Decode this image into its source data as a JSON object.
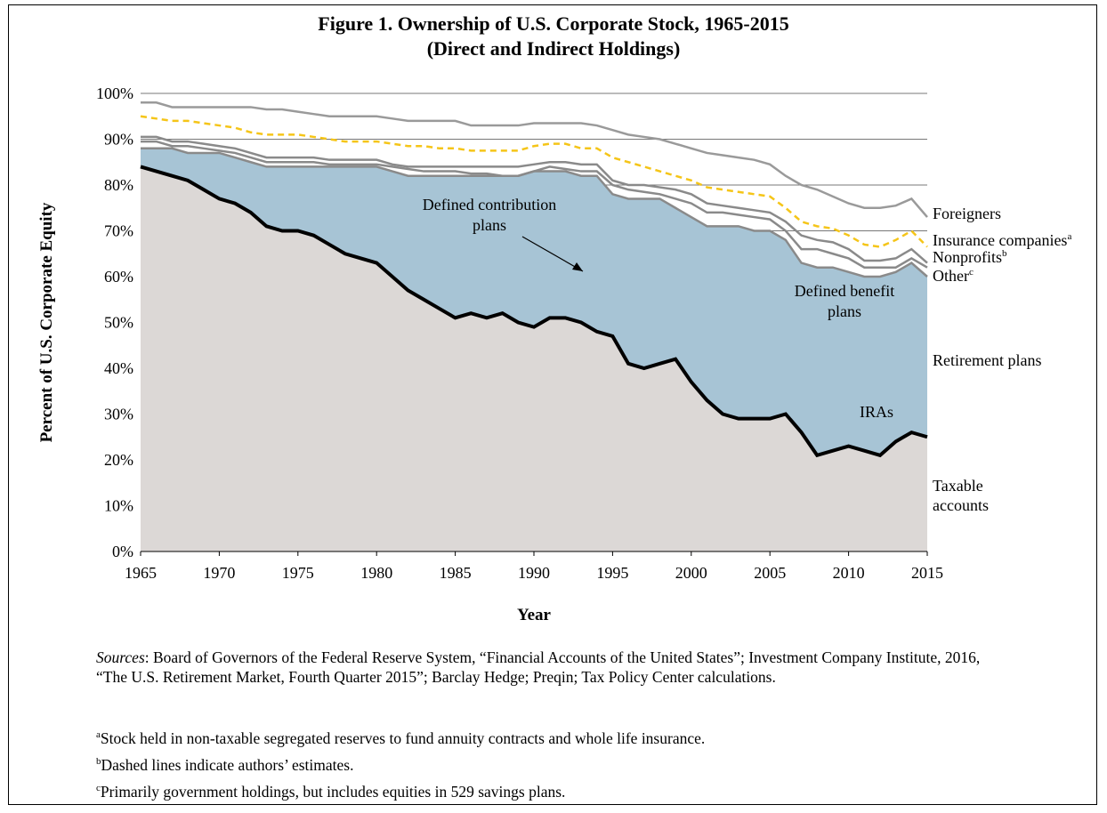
{
  "chart_data": {
    "type": "area",
    "title": "Figure 1. Ownership of U.S. Corporate Stock, 1965-2015",
    "subtitle": "(Direct and Indirect Holdings)",
    "xlabel": "Year",
    "ylabel": "Percent of U.S. Corporate Equity",
    "xlim": [
      1965,
      2015
    ],
    "ylim": [
      0,
      100
    ],
    "x_ticks": [
      "1965",
      "1970",
      "1975",
      "1980",
      "1985",
      "1990",
      "1995",
      "2000",
      "2005",
      "2010",
      "2015"
    ],
    "y_ticks": [
      "0%",
      "10%",
      "20%",
      "30%",
      "40%",
      "50%",
      "60%",
      "70%",
      "80%",
      "90%",
      "100%"
    ],
    "grid": "horizontal",
    "x": [
      1965,
      1966,
      1967,
      1968,
      1969,
      1970,
      1971,
      1972,
      1973,
      1974,
      1975,
      1976,
      1977,
      1978,
      1979,
      1980,
      1981,
      1982,
      1983,
      1984,
      1985,
      1986,
      1987,
      1988,
      1989,
      1990,
      1991,
      1992,
      1993,
      1994,
      1995,
      1996,
      1997,
      1998,
      1999,
      2000,
      2001,
      2002,
      2003,
      2004,
      2005,
      2006,
      2007,
      2008,
      2009,
      2010,
      2011,
      2012,
      2013,
      2014,
      2015
    ],
    "series": [
      {
        "name": "Taxable accounts",
        "values": [
          84,
          83,
          82,
          81,
          79,
          77,
          76,
          74,
          71,
          70,
          70,
          69,
          67,
          65,
          64,
          63,
          60,
          57,
          55,
          53,
          51,
          52,
          51,
          52,
          50,
          49,
          51,
          51,
          50,
          48,
          47,
          41,
          40,
          41,
          42,
          37,
          33,
          30,
          29,
          29,
          29,
          30,
          26,
          21,
          22,
          23,
          22,
          21,
          24,
          26,
          25
        ]
      },
      {
        "name": "IRAs",
        "values": [
          null,
          null,
          null,
          null,
          null,
          null,
          null,
          null,
          null,
          null,
          null,
          null,
          null,
          null,
          null,
          null,
          null,
          null,
          null,
          null,
          null,
          null,
          null,
          null,
          null,
          null,
          null,
          null,
          null,
          null,
          null,
          null,
          null,
          null,
          null,
          null,
          null,
          null,
          null,
          null,
          null,
          null,
          null,
          null,
          null,
          null,
          null,
          null,
          null,
          null,
          null
        ]
      },
      {
        "name": "Retirement plans",
        "values": [
          88,
          88,
          88,
          87,
          87,
          87,
          86,
          85,
          84,
          84,
          84,
          84,
          84,
          84,
          84,
          84,
          83,
          82,
          82,
          82,
          82,
          82,
          82,
          82,
          82,
          83,
          83,
          83,
          82,
          82,
          78,
          77,
          77,
          77,
          75,
          73,
          71,
          71,
          71,
          70,
          70,
          68,
          63,
          62,
          62,
          61,
          60,
          60,
          61,
          63,
          60
        ]
      },
      {
        "name": "Other",
        "values": [
          89.5,
          89.5,
          88.5,
          88.5,
          88,
          87.5,
          87,
          86,
          85,
          85,
          85,
          85,
          84.5,
          84.5,
          84.5,
          84.5,
          84,
          83.5,
          83,
          83,
          83,
          82.5,
          82.5,
          82,
          82,
          83,
          84,
          83.5,
          83,
          83,
          80,
          79,
          78.5,
          78,
          77,
          76,
          74,
          74,
          73.5,
          73,
          72.5,
          70,
          66,
          66,
          65,
          64,
          62,
          62,
          62,
          64,
          62
        ]
      },
      {
        "name": "Nonprofits",
        "values": [
          90.5,
          90.5,
          89.5,
          89.5,
          89,
          88.5,
          88,
          87,
          86,
          86,
          86,
          86,
          85.5,
          85.5,
          85.5,
          85.5,
          84.5,
          84,
          84,
          84,
          84,
          84,
          84,
          84,
          84,
          84.5,
          85,
          85,
          84.5,
          84.5,
          81,
          80,
          80,
          79.5,
          79,
          78,
          76,
          75.5,
          75,
          74.5,
          74,
          72,
          69,
          68,
          67.5,
          66,
          63.5,
          63.5,
          64,
          66,
          63
        ]
      },
      {
        "name": "Insurance companies",
        "values": [
          95,
          94.5,
          94,
          94,
          93.5,
          93,
          92.5,
          91.5,
          91,
          91,
          91,
          90.5,
          90,
          89.5,
          89.5,
          89.5,
          89,
          88.5,
          88.5,
          88,
          88,
          87.5,
          87.5,
          87.5,
          87.5,
          88.5,
          89,
          89,
          88,
          88,
          86,
          85,
          84,
          83,
          82,
          81,
          79.5,
          79,
          78.5,
          78,
          77.5,
          75,
          72,
          71,
          70.5,
          69,
          67,
          66.5,
          68,
          70,
          66.5
        ]
      },
      {
        "name": "Foreigners",
        "values": [
          98,
          98,
          97,
          97,
          97,
          97,
          97,
          97,
          96.5,
          96.5,
          96,
          95.5,
          95,
          95,
          95,
          95,
          94.5,
          94,
          94,
          94,
          94,
          93,
          93,
          93,
          93,
          93.5,
          93.5,
          93.5,
          93.5,
          93,
          92,
          91,
          90.5,
          90,
          89,
          88,
          87,
          86.5,
          86,
          85.5,
          84.5,
          82,
          80,
          79,
          77.5,
          76,
          75,
          75,
          75.5,
          77,
          73
        ]
      }
    ],
    "annotations": {
      "dc": [
        "Defined contribution",
        "plans"
      ],
      "db": [
        "Defined benefit",
        "plans"
      ],
      "ret": "Retirement plans",
      "iras": "IRAs",
      "taxable": [
        "Taxable",
        "accounts"
      ],
      "foreigners": "Foreigners",
      "insurance": "Insurance companies",
      "insurance_sup": "a",
      "nonprofits": "Nonprofits",
      "nonprofits_sup": "b",
      "other": "Other",
      "other_sup": "c"
    },
    "colors": {
      "taxable": "#dcd8d6",
      "retirement": "#a7c4d5",
      "insurance_dashed": "#f5c518",
      "lines": "#8c8c8c",
      "taxable_line": "#000000"
    }
  },
  "notes": {
    "sources_label": "Sources",
    "sources_text": ": Board of Governors of the Federal Reserve System, “Financial Accounts of the United States”; Investment Company Institute, 2016, “The U.S. Retirement Market, Fourth Quarter 2015”; Barclay Hedge; Preqin; Tax Policy Center calculations.",
    "fn_a_mark": "a",
    "fn_a": "Stock held in non-taxable segregated reserves to fund annuity contracts and whole life insurance.",
    "fn_b_mark": "b",
    "fn_b": "Dashed lines indicate authors’ estimates.",
    "fn_c_mark": "c",
    "fn_c": "Primarily government holdings, but includes equities in 529 savings plans."
  }
}
